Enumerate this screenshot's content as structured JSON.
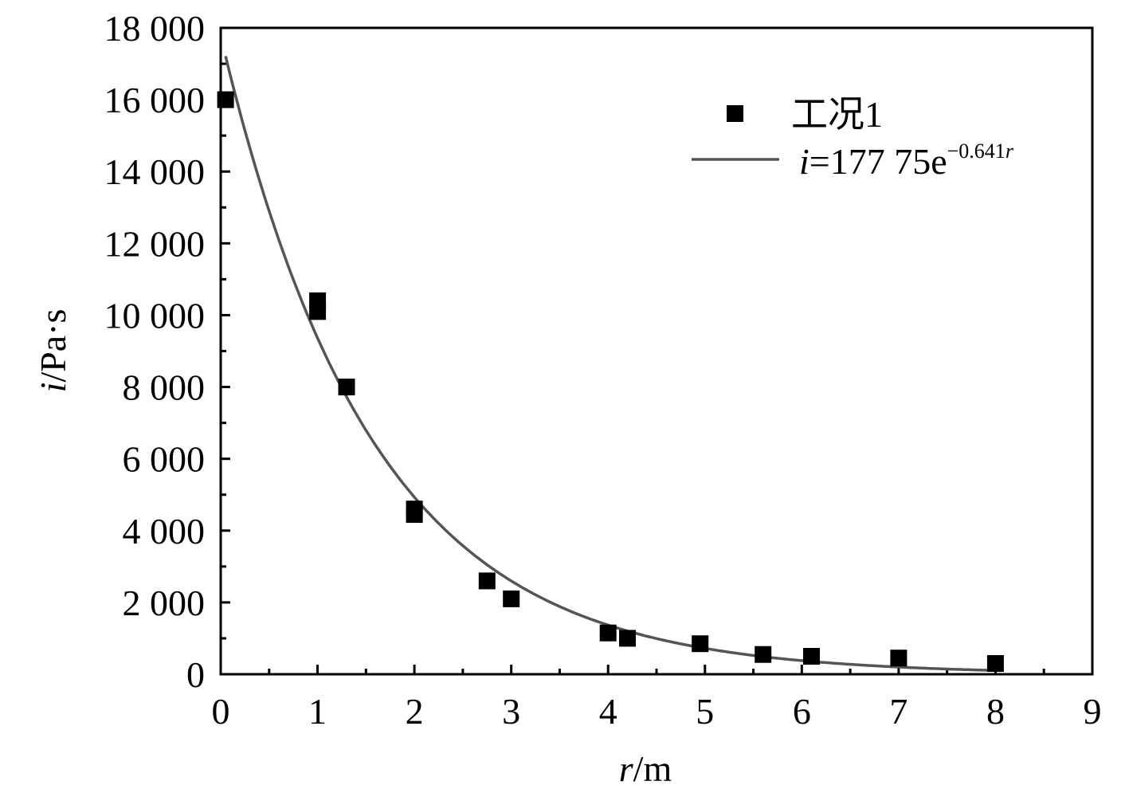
{
  "chart_data": {
    "type": "scatter",
    "title": "",
    "xlabel": {
      "var": "r",
      "unit": "/m"
    },
    "ylabel": {
      "var": "i",
      "unit": "/Pa·s"
    },
    "xlim": [
      0,
      9
    ],
    "ylim": [
      0,
      18000
    ],
    "x_ticks": [
      0,
      1,
      2,
      3,
      4,
      5,
      6,
      7,
      8,
      9
    ],
    "x_tick_labels": [
      "0",
      "1",
      "2",
      "3",
      "4",
      "5",
      "6",
      "7",
      "8",
      "9"
    ],
    "y_ticks": [
      0,
      2000,
      4000,
      6000,
      8000,
      10000,
      12000,
      14000,
      16000,
      18000
    ],
    "y_tick_labels": [
      "0",
      "2 000",
      "4 000",
      "6 000",
      "8 000",
      "10 000",
      "12 000",
      "14 000",
      "16 000",
      "18 000"
    ],
    "grid": false,
    "legend_position": "top-right",
    "series": [
      {
        "name": "工况1",
        "type": "scatter",
        "marker": "square",
        "color": "#000000",
        "points": [
          [
            0.05,
            16000
          ],
          [
            1.0,
            10400
          ],
          [
            1.0,
            10100
          ],
          [
            1.3,
            8000
          ],
          [
            2.0,
            4600
          ],
          [
            2.0,
            4450
          ],
          [
            2.75,
            2600
          ],
          [
            3.0,
            2100
          ],
          [
            4.0,
            1150
          ],
          [
            4.2,
            1000
          ],
          [
            4.95,
            850
          ],
          [
            5.6,
            550
          ],
          [
            6.1,
            500
          ],
          [
            7.0,
            450
          ],
          [
            8.0,
            300
          ]
        ]
      },
      {
        "name": "i=177 75e−0.641r",
        "name_parts": {
          "var": "i",
          "main": "=177 75e",
          "exp": "−0.641",
          "exp_var": "r"
        },
        "type": "line",
        "color": "#555555",
        "function": {
          "a": 17775,
          "b": -0.641
        },
        "x_range": [
          0.05,
          8.0
        ]
      }
    ]
  }
}
